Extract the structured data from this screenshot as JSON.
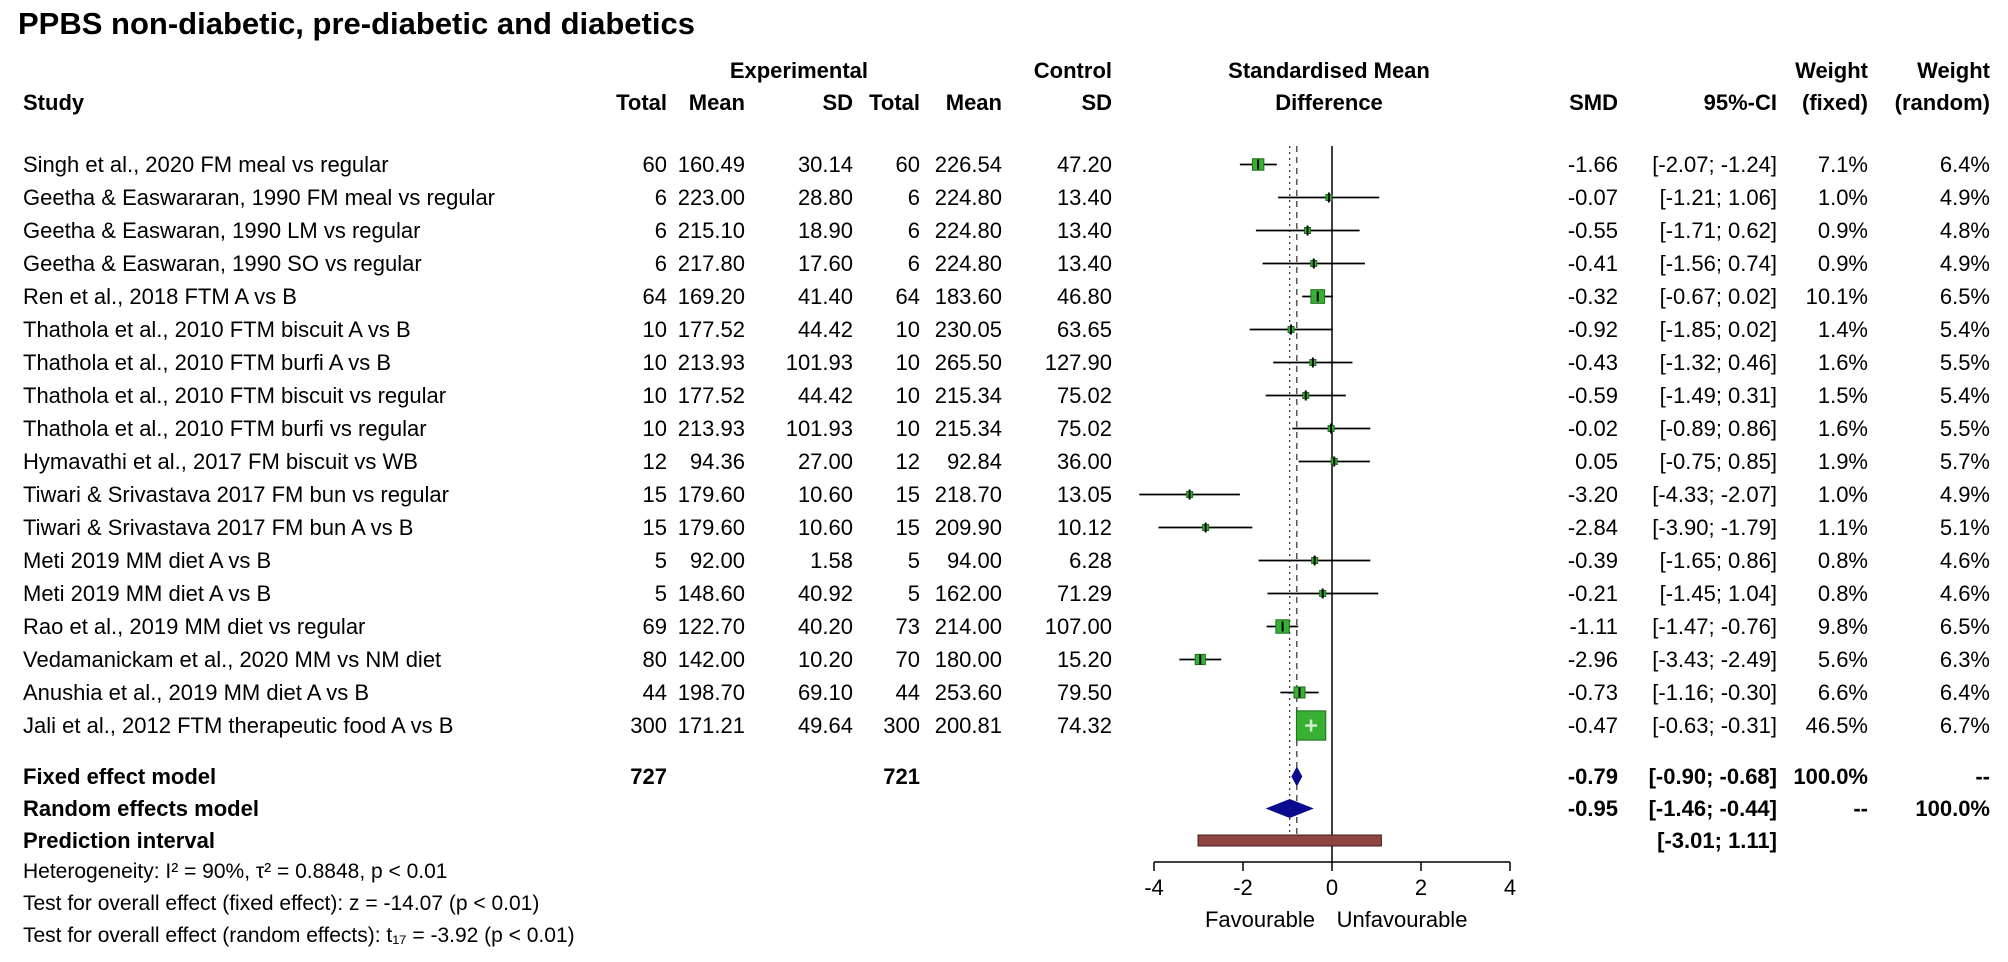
{
  "title": "PPBS non-diabetic, pre-diabetic and diabetics",
  "colors": {
    "square": "#37b034",
    "square_border": "#1e6f1c",
    "square_cross": "#cfeecd",
    "diamond": "#0b0b8f",
    "prediction": "#8e4540",
    "prediction_border": "#401f1c",
    "ci_line": "#000000"
  },
  "chart_data": {
    "type": "forest",
    "columns": {
      "study": "Study",
      "group_experimental": "Experimental",
      "group_control": "Control",
      "total": "Total",
      "mean": "Mean",
      "sd": "SD",
      "smd_header_line1": "Standardised Mean",
      "smd_header_line2": "Difference",
      "smd": "SMD",
      "ci": "95%-CI",
      "weight": "Weight",
      "fixed": "(fixed)",
      "random": "(random)"
    },
    "axis": {
      "min": -4,
      "max": 4,
      "ticks": [
        -4,
        -2,
        0,
        2,
        4
      ],
      "label_left": "Favourable",
      "label_right": "Unfavourable"
    },
    "reference_lines": {
      "null": 0,
      "fixed": -0.79,
      "random": -0.95
    },
    "studies": [
      {
        "label": "Singh et al., 2020 FM meal vs regular",
        "et": "60",
        "em": "160.49",
        "esd": "30.14",
        "ct": "60",
        "cm": "226.54",
        "csd": "47.20",
        "smd": "-1.66",
        "ci": "[-2.07; -1.24]",
        "wf": "7.1%",
        "wr": "6.4%",
        "est": -1.66,
        "lo": -2.07,
        "hi": -1.24,
        "wfn": 7.1
      },
      {
        "label": "Geetha & Easwararan, 1990 FM meal vs regular",
        "et": "6",
        "em": "223.00",
        "esd": "28.80",
        "ct": "6",
        "cm": "224.80",
        "csd": "13.40",
        "smd": "-0.07",
        "ci": "[-1.21; 1.06]",
        "wf": "1.0%",
        "wr": "4.9%",
        "est": -0.07,
        "lo": -1.21,
        "hi": 1.06,
        "wfn": 1.0
      },
      {
        "label": "Geetha & Easwaran, 1990 LM vs regular",
        "et": "6",
        "em": "215.10",
        "esd": "18.90",
        "ct": "6",
        "cm": "224.80",
        "csd": "13.40",
        "smd": "-0.55",
        "ci": "[-1.71; 0.62]",
        "wf": "0.9%",
        "wr": "4.8%",
        "est": -0.55,
        "lo": -1.71,
        "hi": 0.62,
        "wfn": 0.9
      },
      {
        "label": "Geetha & Easwaran, 1990 SO vs regular",
        "et": "6",
        "em": "217.80",
        "esd": "17.60",
        "ct": "6",
        "cm": "224.80",
        "csd": "13.40",
        "smd": "-0.41",
        "ci": "[-1.56; 0.74]",
        "wf": "0.9%",
        "wr": "4.9%",
        "est": -0.41,
        "lo": -1.56,
        "hi": 0.74,
        "wfn": 0.9
      },
      {
        "label": "Ren et al., 2018 FTM A vs B",
        "et": "64",
        "em": "169.20",
        "esd": "41.40",
        "ct": "64",
        "cm": "183.60",
        "csd": "46.80",
        "smd": "-0.32",
        "ci": "[-0.67; 0.02]",
        "wf": "10.1%",
        "wr": "6.5%",
        "est": -0.32,
        "lo": -0.67,
        "hi": 0.02,
        "wfn": 10.1
      },
      {
        "label": "Thathola et al., 2010 FTM biscuit A vs B",
        "et": "10",
        "em": "177.52",
        "esd": "44.42",
        "ct": "10",
        "cm": "230.05",
        "csd": "63.65",
        "smd": "-0.92",
        "ci": "[-1.85; 0.02]",
        "wf": "1.4%",
        "wr": "5.4%",
        "est": -0.92,
        "lo": -1.85,
        "hi": 0.02,
        "wfn": 1.4
      },
      {
        "label": "Thathola et al., 2010 FTM burfi A vs B",
        "et": "10",
        "em": "213.93",
        "esd": "101.93",
        "ct": "10",
        "cm": "265.50",
        "csd": "127.90",
        "smd": "-0.43",
        "ci": "[-1.32; 0.46]",
        "wf": "1.6%",
        "wr": "5.5%",
        "est": -0.43,
        "lo": -1.32,
        "hi": 0.46,
        "wfn": 1.6
      },
      {
        "label": "Thathola et al., 2010 FTM biscuit vs regular",
        "et": "10",
        "em": "177.52",
        "esd": "44.42",
        "ct": "10",
        "cm": "215.34",
        "csd": "75.02",
        "smd": "-0.59",
        "ci": "[-1.49; 0.31]",
        "wf": "1.5%",
        "wr": "5.4%",
        "est": -0.59,
        "lo": -1.49,
        "hi": 0.31,
        "wfn": 1.5
      },
      {
        "label": "Thathola et al., 2010 FTM burfi vs regular",
        "et": "10",
        "em": "213.93",
        "esd": "101.93",
        "ct": "10",
        "cm": "215.34",
        "csd": "75.02",
        "smd": "-0.02",
        "ci": "[-0.89; 0.86]",
        "wf": "1.6%",
        "wr": "5.5%",
        "est": -0.02,
        "lo": -0.89,
        "hi": 0.86,
        "wfn": 1.6
      },
      {
        "label": "Hymavathi et al., 2017 FM biscuit vs WB",
        "et": "12",
        "em": "94.36",
        "esd": "27.00",
        "ct": "12",
        "cm": "92.84",
        "csd": "36.00",
        "smd": "0.05",
        "ci": "[-0.75; 0.85]",
        "wf": "1.9%",
        "wr": "5.7%",
        "est": 0.05,
        "lo": -0.75,
        "hi": 0.85,
        "wfn": 1.9
      },
      {
        "label": "Tiwari & Srivastava 2017 FM bun vs regular",
        "et": "15",
        "em": "179.60",
        "esd": "10.60",
        "ct": "15",
        "cm": "218.70",
        "csd": "13.05",
        "smd": "-3.20",
        "ci": "[-4.33; -2.07]",
        "wf": "1.0%",
        "wr": "4.9%",
        "est": -3.2,
        "lo": -4.33,
        "hi": -2.07,
        "wfn": 1.0
      },
      {
        "label": "Tiwari & Srivastava 2017 FM bun A vs B",
        "et": "15",
        "em": "179.60",
        "esd": "10.60",
        "ct": "15",
        "cm": "209.90",
        "csd": "10.12",
        "smd": "-2.84",
        "ci": "[-3.90; -1.79]",
        "wf": "1.1%",
        "wr": "5.1%",
        "est": -2.84,
        "lo": -3.9,
        "hi": -1.79,
        "wfn": 1.1
      },
      {
        "label": "Meti 2019 MM diet A vs B",
        "et": "5",
        "em": "92.00",
        "esd": "1.58",
        "ct": "5",
        "cm": "94.00",
        "csd": "6.28",
        "smd": "-0.39",
        "ci": "[-1.65; 0.86]",
        "wf": "0.8%",
        "wr": "4.6%",
        "est": -0.39,
        "lo": -1.65,
        "hi": 0.86,
        "wfn": 0.8
      },
      {
        "label": "Meti 2019 MM diet A vs B",
        "et": "5",
        "em": "148.60",
        "esd": "40.92",
        "ct": "5",
        "cm": "162.00",
        "csd": "71.29",
        "smd": "-0.21",
        "ci": "[-1.45; 1.04]",
        "wf": "0.8%",
        "wr": "4.6%",
        "est": -0.21,
        "lo": -1.45,
        "hi": 1.04,
        "wfn": 0.8
      },
      {
        "label": "Rao et al., 2019 MM diet vs regular",
        "et": "69",
        "em": "122.70",
        "esd": "40.20",
        "ct": "73",
        "cm": "214.00",
        "csd": "107.00",
        "smd": "-1.11",
        "ci": "[-1.47; -0.76]",
        "wf": "9.8%",
        "wr": "6.5%",
        "est": -1.11,
        "lo": -1.47,
        "hi": -0.76,
        "wfn": 9.8
      },
      {
        "label": "Vedamanickam et al., 2020 MM vs NM diet",
        "et": "80",
        "em": "142.00",
        "esd": "10.20",
        "ct": "70",
        "cm": "180.00",
        "csd": "15.20",
        "smd": "-2.96",
        "ci": "[-3.43; -2.49]",
        "wf": "5.6%",
        "wr": "6.3%",
        "est": -2.96,
        "lo": -3.43,
        "hi": -2.49,
        "wfn": 5.6
      },
      {
        "label": "Anushia et al., 2019 MM diet A vs B",
        "et": "44",
        "em": "198.70",
        "esd": "69.10",
        "ct": "44",
        "cm": "253.60",
        "csd": "79.50",
        "smd": "-0.73",
        "ci": "[-1.16; -0.30]",
        "wf": "6.6%",
        "wr": "6.4%",
        "est": -0.73,
        "lo": -1.16,
        "hi": -0.3,
        "wfn": 6.6
      },
      {
        "label": "Jali et al., 2012 FTM therapeutic food A vs B",
        "et": "300",
        "em": "171.21",
        "esd": "49.64",
        "ct": "300",
        "cm": "200.81",
        "csd": "74.32",
        "smd": "-0.47",
        "ci": "[-0.63; -0.31]",
        "wf": "46.5%",
        "wr": "6.7%",
        "est": -0.47,
        "lo": -0.63,
        "hi": -0.31,
        "wfn": 46.5
      }
    ],
    "summaries": [
      {
        "label": "Fixed effect model",
        "et": "727",
        "ct": "721",
        "smd": "-0.79",
        "ci": "[-0.90; -0.68]",
        "wf": "100.0%",
        "wr": "--",
        "est": -0.79,
        "lo": -0.9,
        "hi": -0.68
      },
      {
        "label": "Random effects model",
        "smd": "-0.95",
        "ci": "[-1.46; -0.44]",
        "wf": "--",
        "wr": "100.0%",
        "est": -0.95,
        "lo": -1.46,
        "hi": -0.44
      },
      {
        "label": "Prediction interval",
        "ci": "[-3.01;  1.11]",
        "lo": -3.01,
        "hi": 1.11
      }
    ],
    "footnotes": [
      "Heterogeneity: I² = 90%, τ² = 0.8848, p < 0.01",
      "Test for overall effect (fixed effect): z = -14.07 (p < 0.01)",
      "Test for overall effect (random effects): t₁₇ = -3.92 (p < 0.01)"
    ]
  }
}
